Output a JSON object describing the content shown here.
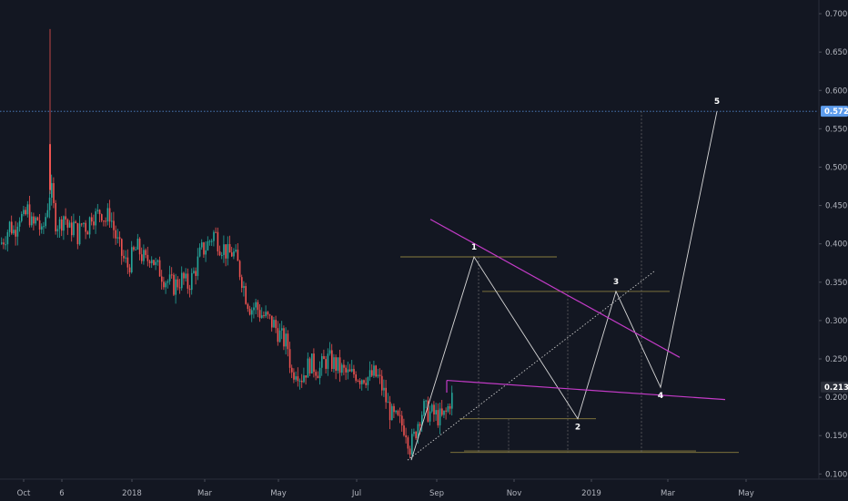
{
  "chart_data": {
    "type": "candlestick",
    "y_axis": {
      "ticks": [
        "0.7000",
        "0.6500",
        "0.6000",
        "0.5500",
        "0.5000",
        "0.4500",
        "0.4000",
        "0.3500",
        "0.3000",
        "0.2500",
        "0.2000",
        "0.1500",
        "0.1000"
      ],
      "min": 0.098,
      "max": 0.706,
      "grid": false,
      "position": "right"
    },
    "x_axis": {
      "ticks": [
        "Oct",
        "6",
        "2018",
        "Mar",
        "May",
        "Jul",
        "Sep",
        "Nov",
        "2019",
        "Mar",
        "May"
      ]
    },
    "price_tags": [
      {
        "value": 0.5728,
        "label": "0.5728",
        "color": "#5d9cec"
      },
      {
        "value": 0.2133,
        "label": "0.2133",
        "color": "#2a2e39"
      }
    ],
    "horizontal_level": {
      "value": 0.5728,
      "style": "dotted",
      "color": "#5d9cec"
    },
    "wave_labels": [
      {
        "label": "1",
        "value": 0.383
      },
      {
        "label": "2",
        "value": 0.172
      },
      {
        "label": "3",
        "value": 0.338
      },
      {
        "label": "4",
        "value": 0.213
      },
      {
        "label": "5",
        "value": 0.5728
      }
    ],
    "price_action_outline": [
      {
        "x": 0,
        "close": 0.4
      },
      {
        "x": 5,
        "close": 0.41
      },
      {
        "x": 10,
        "close": 0.425
      },
      {
        "x": 15,
        "close": 0.415
      },
      {
        "x": 20,
        "close": 0.44
      },
      {
        "x": 25,
        "close": 0.43
      },
      {
        "x": 30,
        "close": 0.445
      },
      {
        "x": 35,
        "close": 0.42
      },
      {
        "x": 40,
        "close": 0.435
      },
      {
        "x": 45,
        "close": 0.41
      },
      {
        "x": 50,
        "close": 0.44
      },
      {
        "x": 55,
        "close": 0.475
      },
      {
        "x": 60,
        "close": 0.43
      },
      {
        "x": 65,
        "close": 0.425
      },
      {
        "x": 70,
        "close": 0.44
      },
      {
        "x": 75,
        "close": 0.415
      },
      {
        "x": 80,
        "close": 0.425
      },
      {
        "x": 85,
        "close": 0.41
      },
      {
        "x": 90,
        "close": 0.43
      },
      {
        "x": 95,
        "close": 0.42
      },
      {
        "x": 100,
        "close": 0.44
      },
      {
        "x": 105,
        "close": 0.435
      },
      {
        "x": 110,
        "close": 0.445
      },
      {
        "x": 115,
        "close": 0.43
      },
      {
        "x": 120,
        "close": 0.44
      },
      {
        "x": 125,
        "close": 0.415
      },
      {
        "x": 130,
        "close": 0.395
      },
      {
        "x": 135,
        "close": 0.38
      },
      {
        "x": 140,
        "close": 0.37
      },
      {
        "x": 145,
        "close": 0.385
      },
      {
        "x": 150,
        "close": 0.395
      },
      {
        "x": 155,
        "close": 0.385
      },
      {
        "x": 160,
        "close": 0.375
      },
      {
        "x": 165,
        "close": 0.39
      },
      {
        "x": 170,
        "close": 0.37
      },
      {
        "x": 175,
        "close": 0.365
      },
      {
        "x": 180,
        "close": 0.355
      },
      {
        "x": 185,
        "close": 0.35
      },
      {
        "x": 190,
        "close": 0.345
      },
      {
        "x": 195,
        "close": 0.35
      },
      {
        "x": 200,
        "close": 0.355
      },
      {
        "x": 205,
        "close": 0.345
      },
      {
        "x": 210,
        "close": 0.355
      },
      {
        "x": 215,
        "close": 0.37
      },
      {
        "x": 220,
        "close": 0.39
      },
      {
        "x": 225,
        "close": 0.395
      },
      {
        "x": 230,
        "close": 0.405
      },
      {
        "x": 235,
        "close": 0.415
      },
      {
        "x": 240,
        "close": 0.4
      },
      {
        "x": 245,
        "close": 0.395
      },
      {
        "x": 250,
        "close": 0.385
      },
      {
        "x": 255,
        "close": 0.39
      },
      {
        "x": 260,
        "close": 0.375
      },
      {
        "x": 265,
        "close": 0.355
      },
      {
        "x": 270,
        "close": 0.33
      },
      {
        "x": 275,
        "close": 0.315
      },
      {
        "x": 280,
        "close": 0.32
      },
      {
        "x": 285,
        "close": 0.31
      },
      {
        "x": 290,
        "close": 0.305
      },
      {
        "x": 295,
        "close": 0.3
      },
      {
        "x": 300,
        "close": 0.295
      },
      {
        "x": 305,
        "close": 0.285
      },
      {
        "x": 310,
        "close": 0.275
      },
      {
        "x": 315,
        "close": 0.27
      },
      {
        "x": 320,
        "close": 0.23
      },
      {
        "x": 325,
        "close": 0.24
      },
      {
        "x": 330,
        "close": 0.225
      },
      {
        "x": 335,
        "close": 0.235
      },
      {
        "x": 340,
        "close": 0.245
      },
      {
        "x": 345,
        "close": 0.24
      },
      {
        "x": 350,
        "close": 0.235
      },
      {
        "x": 355,
        "close": 0.245
      },
      {
        "x": 360,
        "close": 0.25
      },
      {
        "x": 365,
        "close": 0.245
      },
      {
        "x": 370,
        "close": 0.24
      },
      {
        "x": 375,
        "close": 0.235
      },
      {
        "x": 380,
        "close": 0.23
      },
      {
        "x": 385,
        "close": 0.228
      },
      {
        "x": 390,
        "close": 0.232
      },
      {
        "x": 395,
        "close": 0.226
      },
      {
        "x": 400,
        "close": 0.228
      },
      {
        "x": 405,
        "close": 0.225
      },
      {
        "x": 410,
        "close": 0.23
      },
      {
        "x": 415,
        "close": 0.225
      },
      {
        "x": 420,
        "close": 0.21
      },
      {
        "x": 425,
        "close": 0.19
      },
      {
        "x": 430,
        "close": 0.175
      },
      {
        "x": 435,
        "close": 0.17
      },
      {
        "x": 440,
        "close": 0.165
      },
      {
        "x": 445,
        "close": 0.16
      },
      {
        "x": 450,
        "close": 0.135
      },
      {
        "x": 455,
        "close": 0.15
      },
      {
        "x": 460,
        "close": 0.175
      },
      {
        "x": 465,
        "close": 0.185
      },
      {
        "x": 470,
        "close": 0.18
      },
      {
        "x": 475,
        "close": 0.178
      },
      {
        "x": 480,
        "close": 0.175
      },
      {
        "x": 485,
        "close": 0.172
      },
      {
        "x": 490,
        "close": 0.18
      },
      {
        "x": 495,
        "close": 0.2
      }
    ]
  }
}
